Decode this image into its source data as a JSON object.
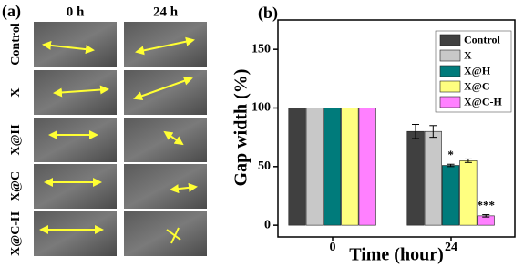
{
  "panel_a": {
    "label": "(a)",
    "columns": [
      "0 h",
      "24 h"
    ],
    "rows": [
      "Control",
      "X",
      "X@H",
      "X@C",
      "X@C-H"
    ]
  },
  "chart_data": {
    "type": "bar",
    "panel_label": "(b)",
    "ylabel": "Gap width (%)",
    "xlabel": "Time (hour)",
    "categories": [
      "0",
      "24"
    ],
    "series": [
      {
        "name": "Control",
        "color": "#404040",
        "values": [
          100,
          80
        ],
        "errors": [
          null,
          6
        ]
      },
      {
        "name": "X",
        "color": "#c8c8c8",
        "values": [
          100,
          80
        ],
        "errors": [
          null,
          5
        ]
      },
      {
        "name": "X@H",
        "color": "#007b7b",
        "values": [
          100,
          51
        ],
        "errors": [
          null,
          1
        ],
        "labels": [
          null,
          "*"
        ]
      },
      {
        "name": "X@C",
        "color": "#ffff80",
        "values": [
          100,
          55
        ],
        "errors": [
          null,
          1.5
        ]
      },
      {
        "name": "X@C-H",
        "color": "#ff80ff",
        "values": [
          100,
          8
        ],
        "errors": [
          null,
          1
        ],
        "labels": [
          null,
          "***"
        ]
      }
    ],
    "ylim": [
      -10,
      175
    ],
    "yticks": [
      0,
      50,
      100,
      150
    ],
    "legend": "upper right"
  }
}
